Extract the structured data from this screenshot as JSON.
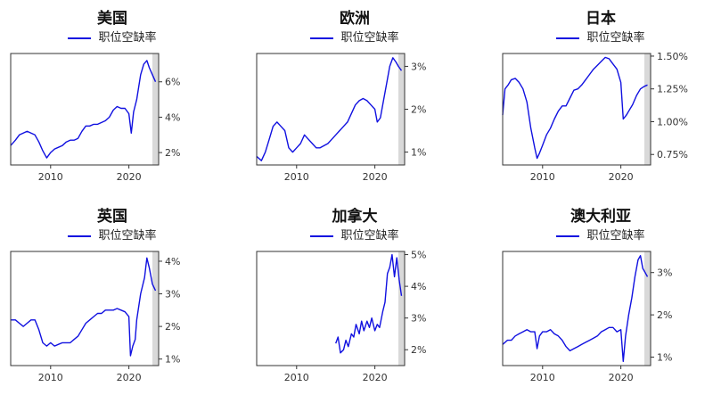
{
  "chart_data": [
    {
      "type": "line",
      "title": "美国",
      "series": [
        {
          "name": "职位空缺率",
          "color": "#1010e0",
          "x": [
            2004.9,
            2005.5,
            2006.0,
            2006.5,
            2007.0,
            2007.5,
            2008.0,
            2008.5,
            2009.0,
            2009.5,
            2010.0,
            2010.5,
            2011.0,
            2011.5,
            2012.0,
            2012.5,
            2013.0,
            2013.5,
            2014.0,
            2014.5,
            2015.0,
            2015.5,
            2016.0,
            2016.5,
            2017.0,
            2017.5,
            2018.0,
            2018.5,
            2019.0,
            2019.5,
            2020.0,
            2020.3,
            2020.6,
            2021.0,
            2021.5,
            2021.9,
            2022.3,
            2022.6,
            2023.0,
            2023.4
          ],
          "y": [
            2.4,
            2.7,
            3.0,
            3.1,
            3.2,
            3.1,
            3.0,
            2.6,
            2.1,
            1.7,
            2.0,
            2.2,
            2.3,
            2.4,
            2.6,
            2.7,
            2.7,
            2.8,
            3.2,
            3.5,
            3.5,
            3.6,
            3.6,
            3.7,
            3.8,
            4.0,
            4.4,
            4.6,
            4.5,
            4.5,
            4.2,
            3.1,
            4.3,
            5.0,
            6.4,
            7.0,
            7.2,
            6.8,
            6.4,
            6.0
          ]
        }
      ],
      "xlim": [
        2004.9,
        2023.8
      ],
      "ylim": [
        1.3,
        7.6
      ],
      "xticks": [
        2010,
        2020
      ],
      "xtick_labels": [
        "2010",
        "2020"
      ],
      "yticks": [
        2,
        4,
        6
      ],
      "ytick_labels": [
        "2%",
        "4%",
        "6%"
      ],
      "shade": [
        2023.0,
        2023.8
      ],
      "grid": false,
      "legend": "top-center"
    },
    {
      "type": "line",
      "title": "欧洲",
      "series": [
        {
          "name": "职位空缺率",
          "color": "#1010e0",
          "x": [
            2004.9,
            2005.5,
            2006.0,
            2006.5,
            2007.0,
            2007.5,
            2008.0,
            2008.5,
            2009.0,
            2009.5,
            2010.0,
            2010.5,
            2011.0,
            2011.5,
            2012.0,
            2012.5,
            2013.0,
            2013.5,
            2014.0,
            2014.5,
            2015.0,
            2015.5,
            2016.0,
            2016.5,
            2017.0,
            2017.5,
            2018.0,
            2018.5,
            2019.0,
            2019.5,
            2020.0,
            2020.3,
            2020.7,
            2021.0,
            2021.5,
            2021.9,
            2022.3,
            2022.7,
            2023.0,
            2023.4
          ],
          "y": [
            0.9,
            0.8,
            1.0,
            1.3,
            1.6,
            1.7,
            1.6,
            1.5,
            1.1,
            1.0,
            1.1,
            1.2,
            1.4,
            1.3,
            1.2,
            1.1,
            1.1,
            1.15,
            1.2,
            1.3,
            1.4,
            1.5,
            1.6,
            1.7,
            1.9,
            2.1,
            2.2,
            2.25,
            2.2,
            2.1,
            2.0,
            1.7,
            1.8,
            2.1,
            2.6,
            3.0,
            3.2,
            3.1,
            3.0,
            2.9
          ]
        }
      ],
      "xlim": [
        2004.9,
        2023.8
      ],
      "ylim": [
        0.7,
        3.3
      ],
      "xticks": [
        2010,
        2020
      ],
      "xtick_labels": [
        "2010",
        "2020"
      ],
      "yticks": [
        1,
        2,
        3
      ],
      "ytick_labels": [
        "1%",
        "2%",
        "3%"
      ],
      "shade": [
        2023.0,
        2023.8
      ],
      "grid": false,
      "legend": "top-center"
    },
    {
      "type": "line",
      "title": "日本",
      "series": [
        {
          "name": "职位空缺率",
          "color": "#1010e0",
          "x": [
            2004.9,
            2005.2,
            2005.6,
            2006.0,
            2006.5,
            2007.0,
            2007.5,
            2008.0,
            2008.5,
            2009.0,
            2009.3,
            2009.6,
            2010.0,
            2010.5,
            2011.0,
            2011.5,
            2012.0,
            2012.5,
            2013.0,
            2013.5,
            2014.0,
            2014.5,
            2015.0,
            2015.5,
            2016.0,
            2016.5,
            2017.0,
            2017.5,
            2018.0,
            2018.5,
            2019.0,
            2019.5,
            2020.0,
            2020.3,
            2020.7,
            2021.0,
            2021.5,
            2022.0,
            2022.5,
            2023.0,
            2023.4
          ],
          "y": [
            1.05,
            1.25,
            1.28,
            1.32,
            1.33,
            1.3,
            1.25,
            1.15,
            0.95,
            0.8,
            0.72,
            0.76,
            0.82,
            0.9,
            0.95,
            1.02,
            1.08,
            1.12,
            1.12,
            1.18,
            1.24,
            1.25,
            1.28,
            1.32,
            1.36,
            1.4,
            1.43,
            1.46,
            1.49,
            1.48,
            1.44,
            1.4,
            1.3,
            1.02,
            1.05,
            1.08,
            1.13,
            1.2,
            1.25,
            1.27,
            1.28
          ]
        }
      ],
      "xlim": [
        2004.9,
        2023.8
      ],
      "ylim": [
        0.67,
        1.52
      ],
      "xticks": [
        2010,
        2020
      ],
      "xtick_labels": [
        "2010",
        "2020"
      ],
      "yticks": [
        0.75,
        1.0,
        1.25,
        1.5
      ],
      "ytick_labels": [
        "0.75%",
        "1.00%",
        "1.25%",
        "1.50%"
      ],
      "shade": [
        2023.0,
        2023.8
      ],
      "grid": false,
      "legend": "top-center"
    },
    {
      "type": "line",
      "title": "英国",
      "series": [
        {
          "name": "职位空缺率",
          "color": "#1010e0",
          "x": [
            2004.9,
            2005.5,
            2006.0,
            2006.5,
            2007.0,
            2007.5,
            2008.0,
            2008.5,
            2009.0,
            2009.5,
            2010.0,
            2010.5,
            2011.0,
            2011.5,
            2012.0,
            2012.5,
            2013.0,
            2013.5,
            2014.0,
            2014.5,
            2015.0,
            2015.5,
            2016.0,
            2016.5,
            2017.0,
            2017.5,
            2018.0,
            2018.5,
            2019.0,
            2019.5,
            2020.0,
            2020.2,
            2020.5,
            2020.8,
            2021.0,
            2021.5,
            2022.0,
            2022.3,
            2022.6,
            2023.0,
            2023.4
          ],
          "y": [
            2.2,
            2.2,
            2.1,
            2.0,
            2.1,
            2.2,
            2.2,
            1.9,
            1.5,
            1.4,
            1.5,
            1.4,
            1.45,
            1.5,
            1.5,
            1.5,
            1.6,
            1.7,
            1.9,
            2.1,
            2.2,
            2.3,
            2.4,
            2.4,
            2.5,
            2.5,
            2.5,
            2.55,
            2.5,
            2.45,
            2.3,
            1.1,
            1.4,
            1.6,
            2.2,
            3.0,
            3.5,
            4.1,
            3.8,
            3.3,
            3.1
          ]
        }
      ],
      "xlim": [
        2004.9,
        2023.8
      ],
      "ylim": [
        0.8,
        4.3
      ],
      "xticks": [
        2010,
        2020
      ],
      "xtick_labels": [
        "2010",
        "2020"
      ],
      "yticks": [
        1,
        2,
        3,
        4
      ],
      "ytick_labels": [
        "1%",
        "2%",
        "3%",
        "4%"
      ],
      "shade": [
        2023.0,
        2023.8
      ],
      "grid": false,
      "legend": "top-center"
    },
    {
      "type": "line",
      "title": "加拿大",
      "series": [
        {
          "name": "职位空缺率",
          "color": "#1010e0",
          "x": [
            2015.0,
            2015.3,
            2015.6,
            2016.0,
            2016.3,
            2016.6,
            2017.0,
            2017.3,
            2017.6,
            2018.0,
            2018.3,
            2018.6,
            2019.0,
            2019.3,
            2019.6,
            2020.0,
            2020.3,
            2020.6,
            2021.0,
            2021.3,
            2021.6,
            2021.9,
            2022.2,
            2022.5,
            2022.8,
            2023.1,
            2023.4
          ],
          "y": [
            2.2,
            2.4,
            1.9,
            2.0,
            2.3,
            2.1,
            2.5,
            2.4,
            2.8,
            2.5,
            2.9,
            2.6,
            2.9,
            2.7,
            3.0,
            2.6,
            2.8,
            2.7,
            3.2,
            3.5,
            4.4,
            4.6,
            5.0,
            4.3,
            4.9,
            4.2,
            3.7
          ]
        }
      ],
      "xlim": [
        2004.9,
        2023.8
      ],
      "ylim": [
        1.5,
        5.1
      ],
      "xticks": [
        2010,
        2020
      ],
      "xtick_labels": [
        "2010",
        "2020"
      ],
      "yticks": [
        2,
        3,
        4,
        5
      ],
      "ytick_labels": [
        "2%",
        "3%",
        "4%",
        "5%"
      ],
      "shade": [
        2023.0,
        2023.8
      ],
      "grid": false,
      "legend": "top-center"
    },
    {
      "type": "line",
      "title": "澳大利亚",
      "series": [
        {
          "name": "职位空缺率",
          "color": "#1010e0",
          "x": [
            2004.9,
            2005.5,
            2006.0,
            2006.5,
            2007.0,
            2007.5,
            2008.0,
            2008.5,
            2009.0,
            2009.3,
            2009.6,
            2010.0,
            2010.5,
            2011.0,
            2011.5,
            2012.0,
            2012.5,
            2013.0,
            2013.5,
            2014.0,
            2014.5,
            2015.0,
            2015.5,
            2016.0,
            2016.5,
            2017.0,
            2017.5,
            2018.0,
            2018.5,
            2019.0,
            2019.5,
            2020.0,
            2020.3,
            2020.6,
            2021.0,
            2021.4,
            2021.8,
            2022.2,
            2022.5,
            2022.8,
            2023.1,
            2023.4
          ],
          "y": [
            1.3,
            1.4,
            1.4,
            1.5,
            1.55,
            1.6,
            1.65,
            1.6,
            1.6,
            1.2,
            1.5,
            1.6,
            1.6,
            1.65,
            1.55,
            1.5,
            1.4,
            1.25,
            1.15,
            1.2,
            1.25,
            1.3,
            1.35,
            1.4,
            1.45,
            1.5,
            1.6,
            1.65,
            1.7,
            1.7,
            1.6,
            1.65,
            0.9,
            1.5,
            2.0,
            2.4,
            2.9,
            3.3,
            3.4,
            3.1,
            3.0,
            2.9
          ]
        }
      ],
      "xlim": [
        2004.9,
        2023.8
      ],
      "ylim": [
        0.8,
        3.5
      ],
      "xticks": [
        2010,
        2020
      ],
      "xtick_labels": [
        "2010",
        "2020"
      ],
      "yticks": [
        1,
        2,
        3
      ],
      "ytick_labels": [
        "1%",
        "2%",
        "3%"
      ],
      "shade": [
        2023.0,
        2023.8
      ],
      "grid": false,
      "legend": "top-center"
    }
  ]
}
